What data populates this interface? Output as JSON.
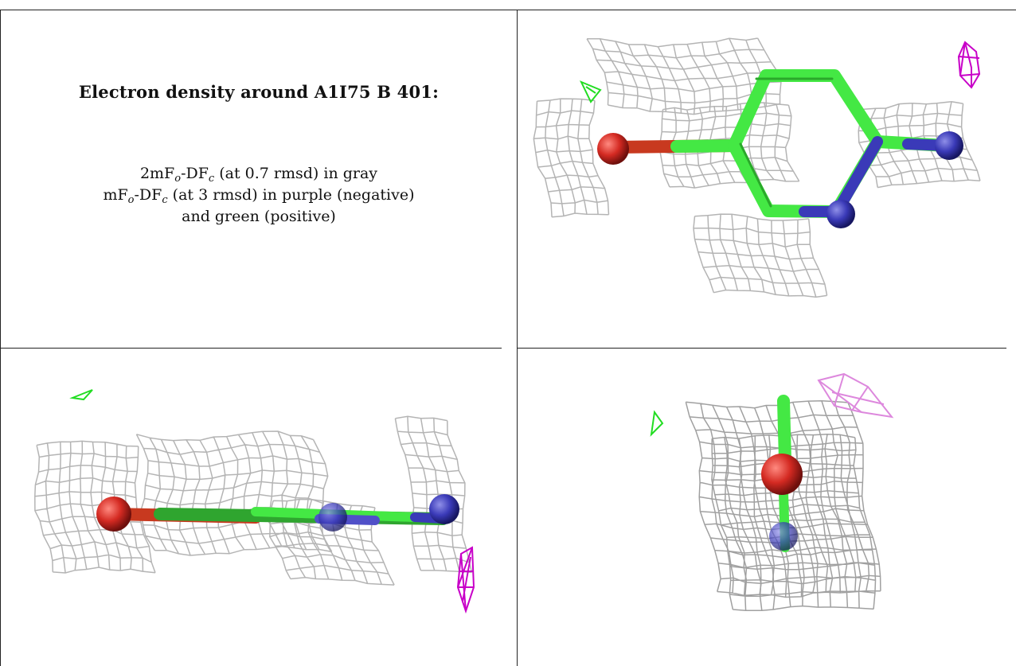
{
  "title": "Electron density around A1I75 B 401:",
  "legend": {
    "line1_prefix": "2mF",
    "line1_o": "o",
    "line1_mid": "-DF",
    "line1_c": "c",
    "line1_suffix": " (at 0.7 rmsd) in gray",
    "line2_prefix": "mF",
    "line2_o": "o",
    "line2_mid": "-DF",
    "line2_c": "c",
    "line2_suffix": " (at 3 rmsd) in purple (negative)",
    "line3": "and green (positive)"
  },
  "colors": {
    "mesh_gray": "#b4b4b4",
    "mesh_dark": "#7a7a7a",
    "negative_purple": "#c800c8",
    "negative_light": "#dd88dd",
    "positive_green": "#22dd22",
    "carbon_green": "#44e844",
    "oxygen_red": "#d42a22",
    "nitrogen_blue": "#3a3ab8"
  }
}
